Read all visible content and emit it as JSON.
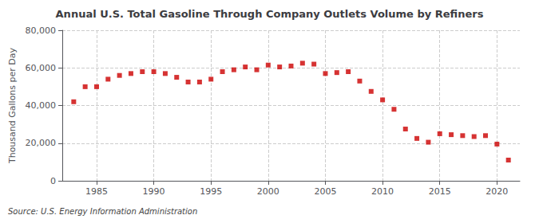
{
  "chart_data": {
    "type": "scatter",
    "title": "Annual U.S. Total Gasoline Through Company Outlets Volume by Refiners",
    "ylabel": "Thousand Gallons per Day",
    "source": "Source: U.S. Energy Information Administration",
    "x": [
      1983,
      1984,
      1985,
      1986,
      1987,
      1988,
      1989,
      1990,
      1991,
      1992,
      1993,
      1994,
      1995,
      1996,
      1997,
      1998,
      1999,
      2000,
      2001,
      2002,
      2003,
      2004,
      2005,
      2006,
      2007,
      2008,
      2009,
      2010,
      2011,
      2012,
      2013,
      2014,
      2015,
      2016,
      2017,
      2018,
      2019,
      2020,
      2021
    ],
    "values": [
      42000,
      50000,
      50000,
      54000,
      56000,
      57000,
      58000,
      58000,
      57000,
      55000,
      52500,
      52500,
      54000,
      58000,
      59000,
      60500,
      59000,
      61500,
      60500,
      61000,
      62500,
      62000,
      57000,
      57500,
      58000,
      53000,
      47500,
      43000,
      38000,
      27500,
      22500,
      20500,
      25000,
      24500,
      24000,
      23500,
      24000,
      19500,
      11000
    ],
    "color": "#cc0000",
    "marker": "square",
    "xlim": [
      1982,
      2022
    ],
    "xticks": [
      1985,
      1990,
      1995,
      2000,
      2005,
      2010,
      2015,
      2020
    ],
    "ylim": [
      0,
      80000
    ],
    "yticks": [
      0,
      {
        "value": 20000,
        "label": "20,000"
      },
      {
        "value": 40000,
        "label": "40,000"
      },
      {
        "value": 60000,
        "label": "60,000"
      },
      {
        "value": 80000,
        "label": "80,000"
      }
    ],
    "grid": true
  }
}
